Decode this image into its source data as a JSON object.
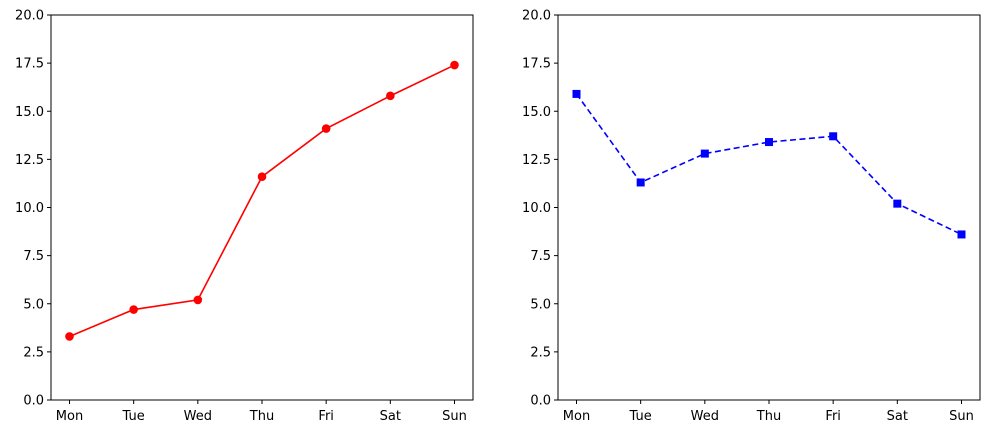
{
  "chart_data": [
    {
      "type": "line",
      "categories": [
        "Mon",
        "Tue",
        "Wed",
        "Thu",
        "Fri",
        "Sat",
        "Sun"
      ],
      "series": [
        {
          "values": [
            3.3,
            4.7,
            5.2,
            11.6,
            14.1,
            15.8,
            17.4
          ],
          "color": "#ff0000",
          "line_style": "solid",
          "marker": "circle"
        }
      ],
      "ylim": [
        0,
        20
      ],
      "yticks": [
        "0.0",
        "2.5",
        "5.0",
        "7.5",
        "10.0",
        "12.5",
        "15.0",
        "17.5",
        "20.0"
      ],
      "grid": false
    },
    {
      "type": "line",
      "categories": [
        "Mon",
        "Tue",
        "Wed",
        "Thu",
        "Fri",
        "Sat",
        "Sun"
      ],
      "series": [
        {
          "values": [
            15.9,
            11.3,
            12.8,
            13.4,
            13.7,
            10.2,
            8.6
          ],
          "color": "#0000ff",
          "line_style": "dashed",
          "marker": "square"
        }
      ],
      "ylim": [
        0,
        20
      ],
      "yticks": [
        "0.0",
        "2.5",
        "5.0",
        "7.5",
        "10.0",
        "12.5",
        "15.0",
        "17.5",
        "20.0"
      ],
      "grid": false
    }
  ]
}
